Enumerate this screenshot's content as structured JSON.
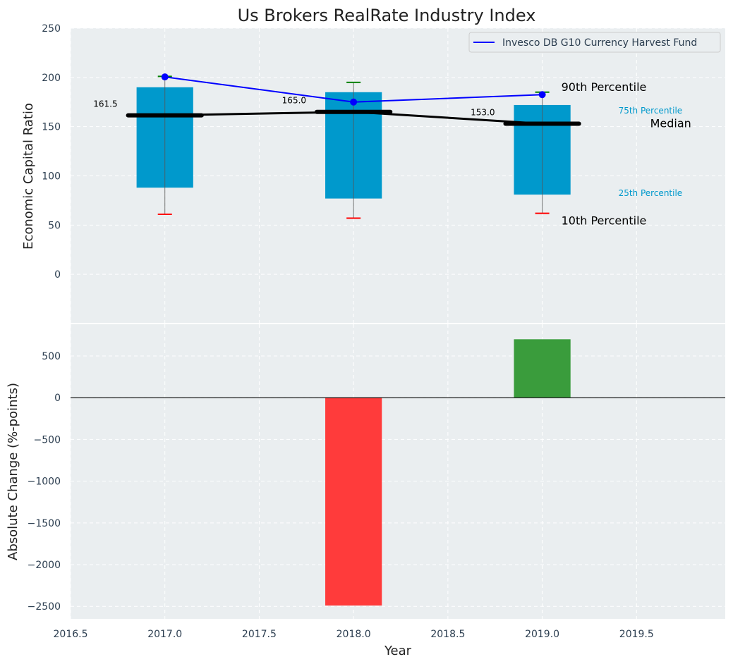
{
  "chart_data": {
    "type": "box-and-bar",
    "title": "Us Brokers RealRate Industry Index",
    "xlabel": "Year",
    "xlim": [
      2016.5,
      2019.97
    ],
    "xticks": [
      2016.5,
      2017.0,
      2017.5,
      2018.0,
      2018.5,
      2019.0,
      2019.5
    ],
    "xtick_labels": [
      "2016.5",
      "2017.0",
      "2017.5",
      "2018.0",
      "2018.5",
      "2019.0",
      "2019.5"
    ],
    "colors": {
      "panel_bg": "#eaeef0",
      "box": "#0099cc",
      "median": "#000000",
      "fund_line": "#0000ff",
      "p90_cap": "#008000",
      "p10_cap": "#ff0000",
      "positive_bar": "#3a9c3c",
      "negative_bar": "#ff3b3b",
      "annotation_box_label": "#0099cc"
    },
    "top_panel": {
      "ylabel": "Economic Capital Ratio",
      "ylim": [
        -50,
        250
      ],
      "yticks": [
        0,
        50,
        100,
        150,
        200,
        250
      ],
      "ytick_labels": [
        "0",
        "50",
        "100",
        "150",
        "200",
        "250"
      ],
      "categories": [
        2017.0,
        2018.0,
        2019.0
      ],
      "p10": [
        61,
        57,
        62
      ],
      "p25": [
        88,
        77,
        81
      ],
      "median": [
        161.5,
        165.0,
        153.0
      ],
      "p75": [
        190,
        185,
        172
      ],
      "p90": [
        201,
        195,
        185
      ],
      "median_labels": [
        "161.5",
        "165.0",
        "153.0"
      ],
      "fund_series": {
        "name": "Invesco DB G10 Currency Harvest Fund",
        "values": [
          200.5,
          175,
          182.5
        ]
      },
      "legend": {
        "position": "top-right",
        "entries": [
          "Invesco DB G10 Currency Harvest Fund"
        ]
      },
      "annotations": {
        "p90": "90th Percentile",
        "p75": "75th Percentile",
        "median": "Median",
        "p25": "25th Percentile",
        "p10": "10th Percentile"
      }
    },
    "bottom_panel": {
      "ylabel": "Absolute Change (%-points)",
      "ylim": [
        -2650,
        880
      ],
      "yticks": [
        500,
        0,
        -500,
        -1000,
        -1500,
        -2000,
        -2500
      ],
      "ytick_labels": [
        "500",
        "0",
        "−500",
        "−1000",
        "−1500",
        "−2000",
        "−2500"
      ],
      "categories": [
        2018.0,
        2019.0
      ],
      "values": [
        -2490,
        700
      ]
    }
  }
}
